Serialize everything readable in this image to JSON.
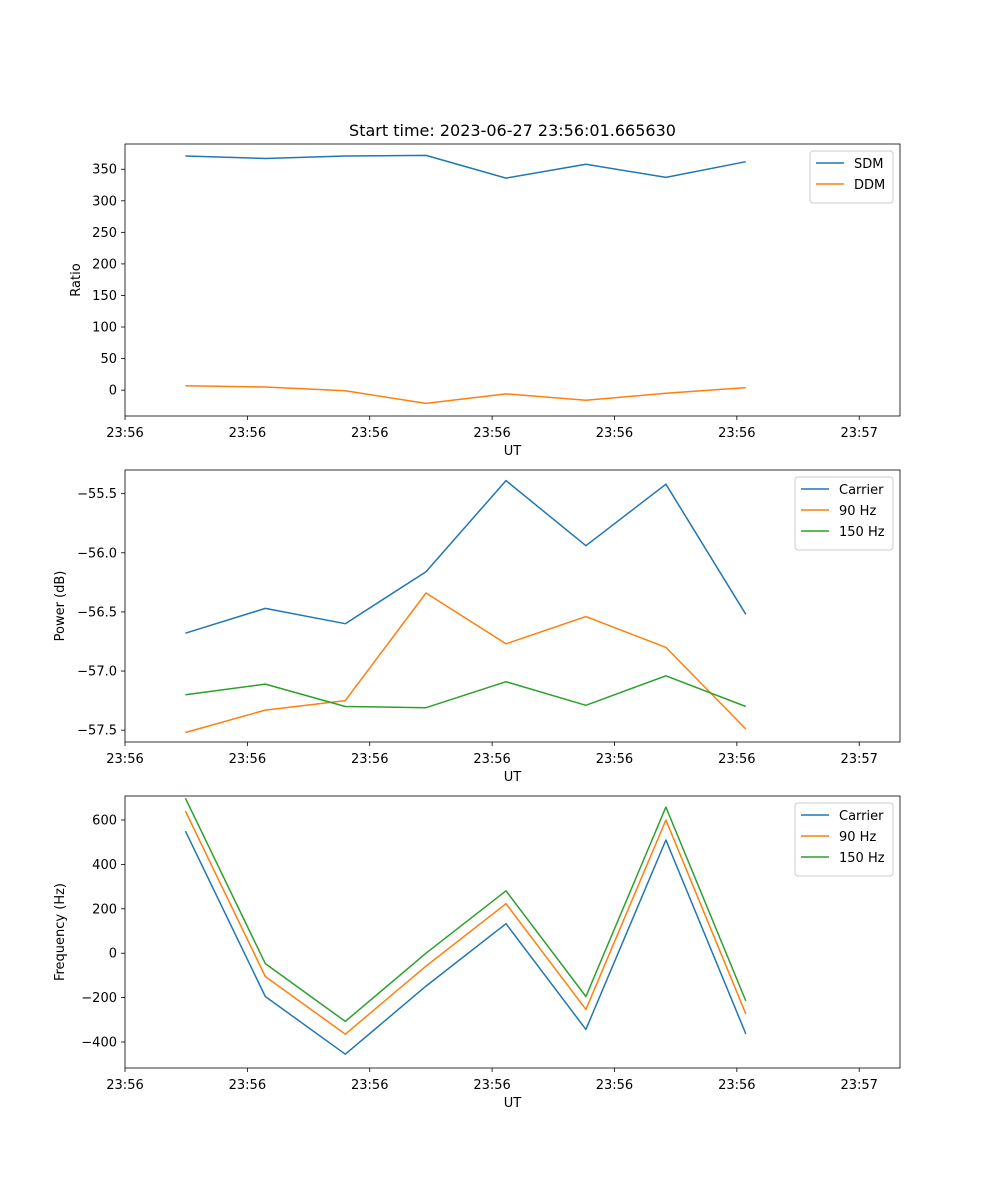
{
  "figure_title": "Start time: 2023-06-27 23:56:01.665630",
  "chart_data": [
    {
      "type": "line",
      "ylabel": "Ratio",
      "xlabel": "UT",
      "xlim": [
        0,
        9.5
      ],
      "x_tick_positions": [
        0,
        1.5,
        3,
        4.5,
        6,
        7.5,
        9
      ],
      "x_tick_labels": [
        "23:56",
        "23:56",
        "23:56",
        "23:56",
        "23:56",
        "23:56",
        "23:57"
      ],
      "ylim": [
        -41,
        390
      ],
      "y_ticks": [
        0,
        50,
        100,
        150,
        200,
        250,
        300,
        350
      ],
      "x": [
        0.74,
        1.72,
        2.7,
        3.69,
        4.67,
        5.65,
        6.63,
        7.61
      ],
      "series": [
        {
          "name": "SDM",
          "color": "#1f77b4",
          "values": [
            371,
            367,
            371,
            372,
            336,
            358,
            337,
            362
          ]
        },
        {
          "name": "DDM",
          "color": "#ff7f0e",
          "values": [
            7,
            5,
            -1,
            -21,
            -6,
            -16,
            -5,
            4
          ]
        }
      ],
      "legend": "top-right",
      "grid": false
    },
    {
      "type": "line",
      "ylabel": "Power (dB)",
      "xlabel": "UT",
      "xlim": [
        0,
        9.5
      ],
      "x_tick_positions": [
        0,
        1.5,
        3,
        4.5,
        6,
        7.5,
        9
      ],
      "x_tick_labels": [
        "23:56",
        "23:56",
        "23:56",
        "23:56",
        "23:56",
        "23:56",
        "23:57"
      ],
      "ylim": [
        -57.6,
        -55.3
      ],
      "y_ticks": [
        -55.5,
        -56.0,
        -56.5,
        -57.0,
        -57.5
      ],
      "y_tick_labels": [
        "−55.5",
        "−56.0",
        "−56.5",
        "−57.0",
        "−57.5"
      ],
      "x": [
        0.74,
        1.72,
        2.7,
        3.69,
        4.67,
        5.65,
        6.63,
        7.61
      ],
      "series": [
        {
          "name": "Carrier",
          "color": "#1f77b4",
          "values": [
            -56.68,
            -56.47,
            -56.6,
            -56.16,
            -55.39,
            -55.94,
            -55.42,
            -56.52
          ]
        },
        {
          "name": "90 Hz",
          "color": "#ff7f0e",
          "values": [
            -57.52,
            -57.33,
            -57.25,
            -56.34,
            -56.77,
            -56.54,
            -56.8,
            -57.49
          ]
        },
        {
          "name": "150 Hz",
          "color": "#2ca02c",
          "values": [
            -57.2,
            -57.11,
            -57.3,
            -57.31,
            -57.09,
            -57.29,
            -57.04,
            -57.3
          ]
        }
      ],
      "legend": "top-right",
      "grid": false
    },
    {
      "type": "line",
      "ylabel": "Frequency (Hz)",
      "xlabel": "UT",
      "xlim": [
        0,
        9.5
      ],
      "x_tick_positions": [
        0,
        1.5,
        3,
        4.5,
        6,
        7.5,
        9
      ],
      "x_tick_labels": [
        "23:56",
        "23:56",
        "23:56",
        "23:56",
        "23:56",
        "23:56",
        "23:57"
      ],
      "ylim": [
        -517,
        708
      ],
      "y_ticks": [
        600,
        400,
        200,
        0,
        -200,
        -400
      ],
      "y_tick_labels": [
        "600",
        "400",
        "200",
        "0",
        "−200",
        "−400"
      ],
      "x": [
        0.74,
        1.72,
        2.7,
        3.69,
        4.67,
        5.65,
        6.63,
        7.61
      ],
      "series": [
        {
          "name": "Carrier",
          "color": "#1f77b4",
          "values": [
            550,
            -195,
            -455,
            -148,
            133,
            -343,
            510,
            -363
          ]
        },
        {
          "name": "90 Hz",
          "color": "#ff7f0e",
          "values": [
            640,
            -105,
            -365,
            -58,
            223,
            -253,
            600,
            -273
          ]
        },
        {
          "name": "150 Hz",
          "color": "#2ca02c",
          "values": [
            698,
            -47,
            -307,
            0,
            281,
            -195,
            658,
            -215
          ]
        }
      ],
      "legend": "top-right",
      "grid": false
    }
  ]
}
